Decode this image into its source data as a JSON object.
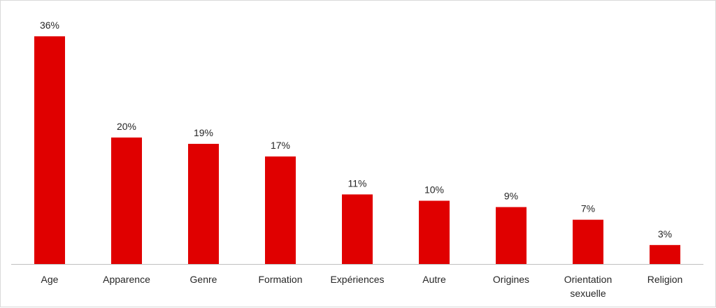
{
  "chart_data": {
    "type": "bar",
    "categories": [
      "Age",
      "Apparence",
      "Genre",
      "Formation",
      "Expériences",
      "Autre",
      "Origines",
      "Orientation sexuelle",
      "Religion"
    ],
    "category_lines": [
      [
        "Age"
      ],
      [
        "Apparence"
      ],
      [
        "Genre"
      ],
      [
        "Formation"
      ],
      [
        "Expériences"
      ],
      [
        "Autre"
      ],
      [
        "Origines"
      ],
      [
        "Orientation",
        "sexuelle"
      ],
      [
        "Religion"
      ]
    ],
    "values": [
      36,
      20,
      19,
      17,
      11,
      10,
      9,
      7,
      3
    ],
    "data_labels": [
      "36%",
      "20%",
      "19%",
      "17%",
      "11%",
      "10%",
      "9%",
      "7%",
      "3%"
    ],
    "unit": "%",
    "title": "",
    "xlabel": "",
    "ylabel": "",
    "ylim": [
      0,
      36
    ],
    "grid": false,
    "legend": "none",
    "bar_color": "#e00000",
    "axis_color": "#bfbfbf"
  }
}
